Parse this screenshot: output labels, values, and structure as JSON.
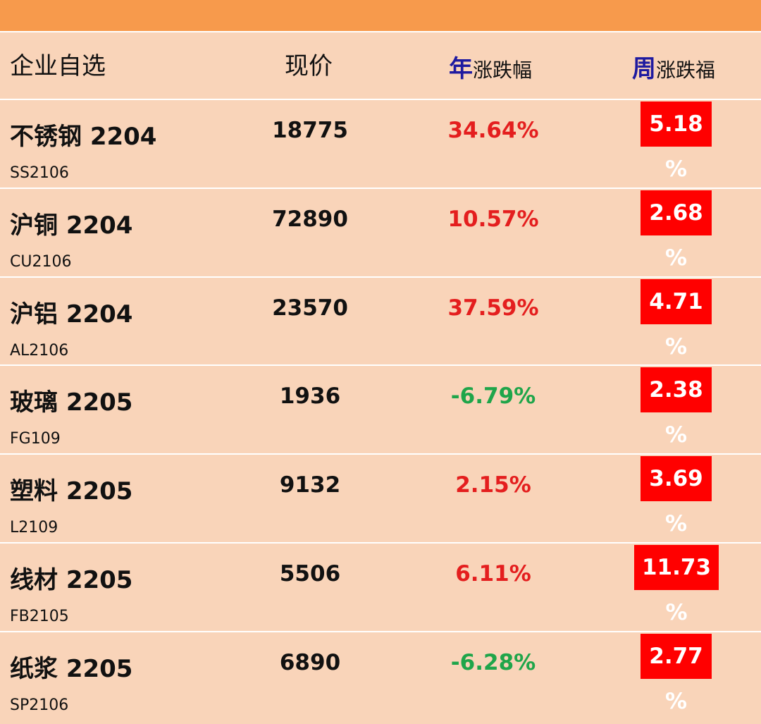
{
  "header": {
    "name": "企业自选",
    "price": "现价",
    "year_em": "年",
    "year_rest": "涨跌幅",
    "week_em": "周",
    "week_rest": "涨跌福"
  },
  "rows": [
    {
      "name": "不锈钢 2204",
      "code": "SS2106",
      "price": "18775",
      "year": "34.64%",
      "week": "5.18 %"
    },
    {
      "name": "沪铜 2204",
      "code": "CU2106",
      "price": "72890",
      "year": "10.57%",
      "week": "2.68 %"
    },
    {
      "name": "沪铝 2204",
      "code": "AL2106",
      "price": "23570",
      "year": "37.59%",
      "week": "4.71 %"
    },
    {
      "name": "玻璃 2205",
      "code": "FG109",
      "price": "1936",
      "year": "-6.79%",
      "week": "2.38 %"
    },
    {
      "name": "塑料 2205",
      "code": "L2109",
      "price": "9132",
      "year": "2.15%",
      "week": "3.69 %"
    },
    {
      "name": "线材 2205",
      "code": "FB2105",
      "price": "5506",
      "year": "6.11%",
      "week": "11.73 %"
    },
    {
      "name": "纸浆 2205",
      "code": "SP2106",
      "price": "6890",
      "year": "-6.28%",
      "week": "2.77 %"
    }
  ],
  "colors": {
    "up": "#e41e1e",
    "down": "#1fa54a",
    "badge": "#ff0000",
    "top_bar": "#f79a4c",
    "background": "#f9d4b9",
    "header_em": "#1f1aa0"
  }
}
